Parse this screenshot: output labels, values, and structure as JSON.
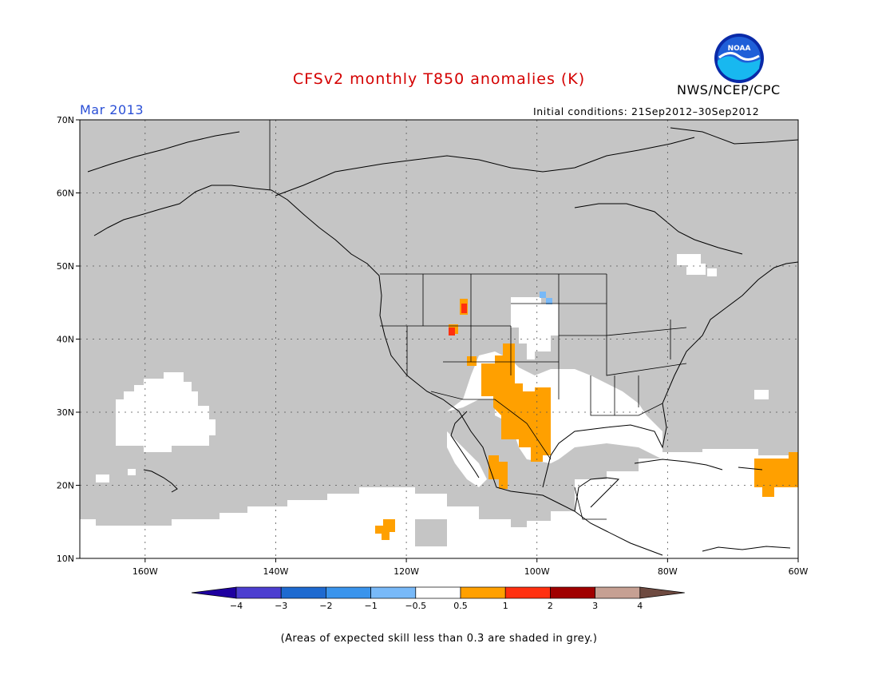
{
  "title": "CFSv2 monthly T850 anomalies (K)",
  "month": "Mar 2013",
  "org": "NWS/NCEP/CPC",
  "logo_text": "NOAA",
  "initial_conditions": "Initial conditions: 21Sep2012–30Sep2012",
  "footnote": "(Areas of expected skill less than 0.3 are shaded in grey.)",
  "map": {
    "lon_range": [
      -170,
      -60
    ],
    "lat_range": [
      10,
      70
    ],
    "lat_ticks": [
      {
        "value": 70,
        "label": "70N"
      },
      {
        "value": 60,
        "label": "60N"
      },
      {
        "value": 50,
        "label": "50N"
      },
      {
        "value": 40,
        "label": "40N"
      },
      {
        "value": 30,
        "label": "30N"
      },
      {
        "value": 20,
        "label": "20N"
      },
      {
        "value": 10,
        "label": "10N"
      }
    ],
    "lon_ticks": [
      {
        "value": -160,
        "label": "160W"
      },
      {
        "value": -140,
        "label": "140W"
      },
      {
        "value": -120,
        "label": "120W"
      },
      {
        "value": -100,
        "label": "100W"
      },
      {
        "value": -80,
        "label": "80W"
      },
      {
        "value": -60,
        "label": "60W"
      }
    ],
    "colors": {
      "low_skill": "#c5c5c5",
      "background": "#ffffff",
      "warm_0_5_to_1": "#ffa000",
      "warm_1_to_2": "#ff3010",
      "cool_minus1_to_minus0_5": "#78b9f8"
    }
  },
  "colorbar": {
    "colors": [
      "#1e00a0",
      "#4c3ed0",
      "#1e6ad0",
      "#3a94ec",
      "#78b9f8",
      "#ffffff",
      "#ffa000",
      "#ff3010",
      "#a00000",
      "#c6a093",
      "#6e4a40"
    ],
    "labels": [
      "−4",
      "−3",
      "−2",
      "−1",
      "−0.5",
      "0.5",
      "1",
      "2",
      "3",
      "4"
    ]
  }
}
